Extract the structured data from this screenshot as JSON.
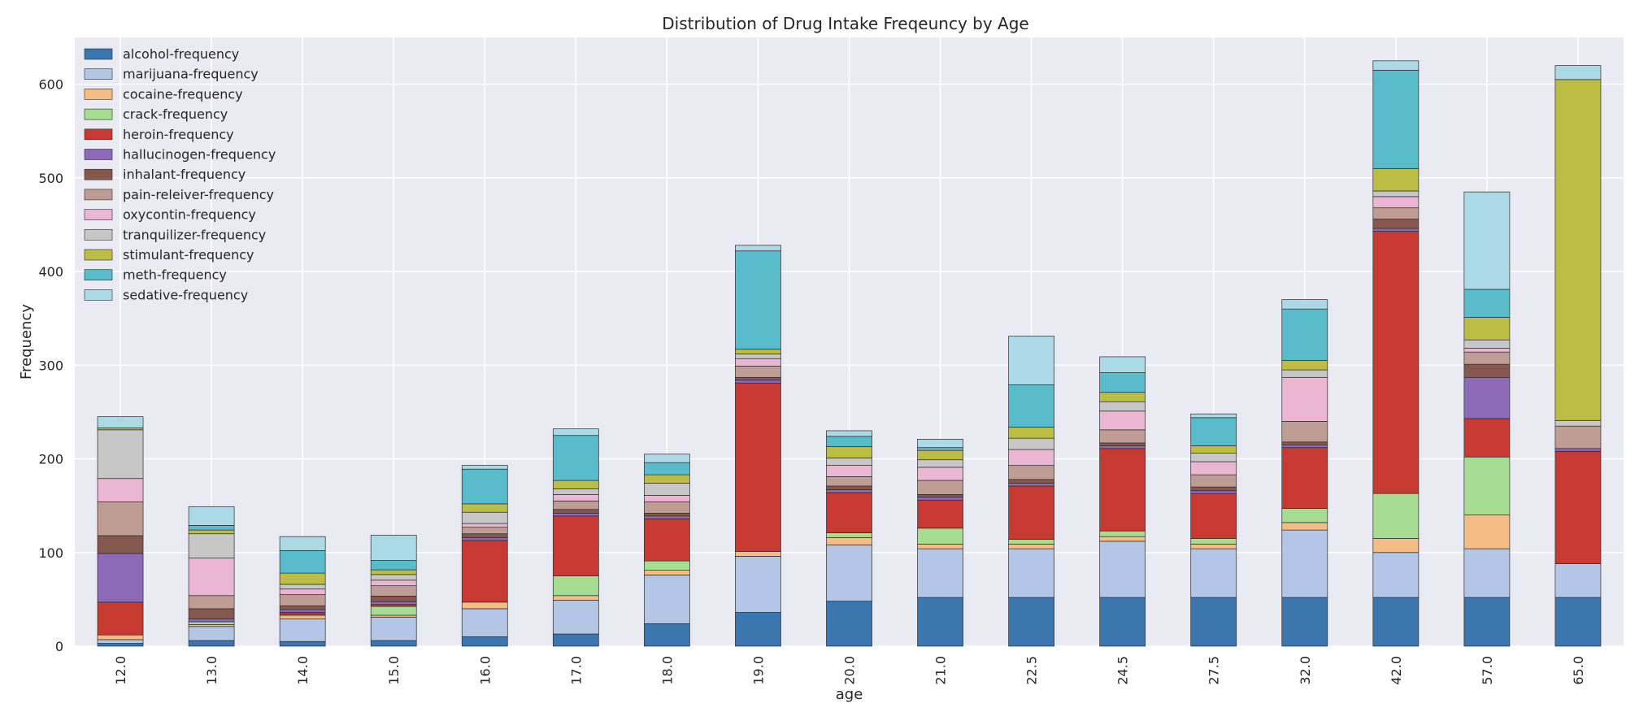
{
  "chart_data": {
    "type": "bar",
    "stacked": true,
    "title": "Distribution of Drug Intake Freqeuncy by Age",
    "xlabel": "age",
    "ylabel": "Frequency",
    "ylim": [
      0,
      650
    ],
    "yticks": [
      0,
      100,
      200,
      300,
      400,
      500,
      600
    ],
    "grid": true,
    "legend_position": "top-left",
    "categories": [
      "12.0",
      "13.0",
      "14.0",
      "15.0",
      "16.0",
      "17.0",
      "18.0",
      "19.0",
      "20.0",
      "21.0",
      "22.5",
      "24.5",
      "27.5",
      "32.0",
      "42.0",
      "57.0",
      "65.0"
    ],
    "series": [
      {
        "name": "alcohol-frequency",
        "color": "#3b76af",
        "values": [
          3,
          6,
          5,
          6,
          10,
          13,
          24,
          36,
          48,
          52,
          52,
          52,
          52,
          52,
          52,
          52,
          52
        ]
      },
      {
        "name": "marijuana-frequency",
        "color": "#b3c6e5",
        "values": [
          4,
          15,
          24,
          25,
          30,
          36,
          52,
          60,
          60,
          52,
          52,
          60,
          52,
          72,
          48,
          52,
          36
        ]
      },
      {
        "name": "cocaine-frequency",
        "color": "#f4bd86",
        "values": [
          5,
          2,
          4,
          2,
          7,
          5,
          5,
          5,
          8,
          5,
          5,
          5,
          5,
          8,
          15,
          36,
          0
        ]
      },
      {
        "name": "crack-frequency",
        "color": "#a6dd93",
        "values": [
          0,
          3,
          1,
          9.5,
          0,
          21,
          10,
          0,
          5,
          17,
          5,
          6,
          6,
          15,
          48,
          62,
          0
        ]
      },
      {
        "name": "heroin-frequency",
        "color": "#c63a32",
        "values": [
          35,
          0,
          2,
          2,
          66,
          64,
          45,
          180,
          43,
          30,
          57,
          88,
          48,
          65,
          280,
          41,
          120
        ]
      },
      {
        "name": "hallucinogen-frequency",
        "color": "#8d69b8",
        "values": [
          52,
          3,
          3,
          3,
          3,
          3,
          3,
          3,
          3,
          3,
          3,
          3,
          3,
          3,
          3,
          44,
          3
        ]
      },
      {
        "name": "inhalant-frequency",
        "color": "#84584e",
        "values": [
          19,
          11,
          4,
          6,
          4,
          4,
          3,
          3,
          4,
          3,
          4,
          3,
          4,
          3,
          10,
          14,
          0
        ]
      },
      {
        "name": "pain-releiver-frequency",
        "color": "#bf9d95",
        "values": [
          36,
          14,
          12,
          11,
          7,
          9,
          12,
          12,
          10,
          15,
          15,
          14,
          13,
          22,
          12,
          13,
          24
        ]
      },
      {
        "name": "oxycontin-frequency",
        "color": "#eab6d2",
        "values": [
          25,
          40,
          6,
          6,
          4,
          7,
          7,
          8,
          12,
          14,
          17,
          20,
          14,
          47,
          12,
          4,
          0
        ]
      },
      {
        "name": "tranquilizer-frequency",
        "color": "#c7c7c7",
        "values": [
          52,
          26,
          5,
          6,
          12,
          6,
          13,
          5,
          8,
          8,
          12,
          10,
          9,
          8,
          6,
          9,
          6
        ]
      },
      {
        "name": "stimulant-frequency",
        "color": "#bcbd45",
        "values": [
          2,
          4,
          12,
          5,
          9,
          9,
          9,
          5,
          12,
          10,
          12,
          10,
          8,
          10,
          24,
          24,
          364
        ]
      },
      {
        "name": "meth-frequency",
        "color": "#58bccc",
        "values": [
          0,
          5,
          24,
          10,
          37,
          48,
          13,
          105,
          11,
          3,
          45,
          21,
          30,
          55,
          105,
          30,
          0
        ]
      },
      {
        "name": "sedative-frequency",
        "color": "#abd9e6",
        "values": [
          12,
          20,
          15,
          27,
          4,
          7,
          9,
          6,
          6,
          9,
          52,
          17,
          4,
          10,
          10,
          104,
          15
        ]
      }
    ]
  }
}
